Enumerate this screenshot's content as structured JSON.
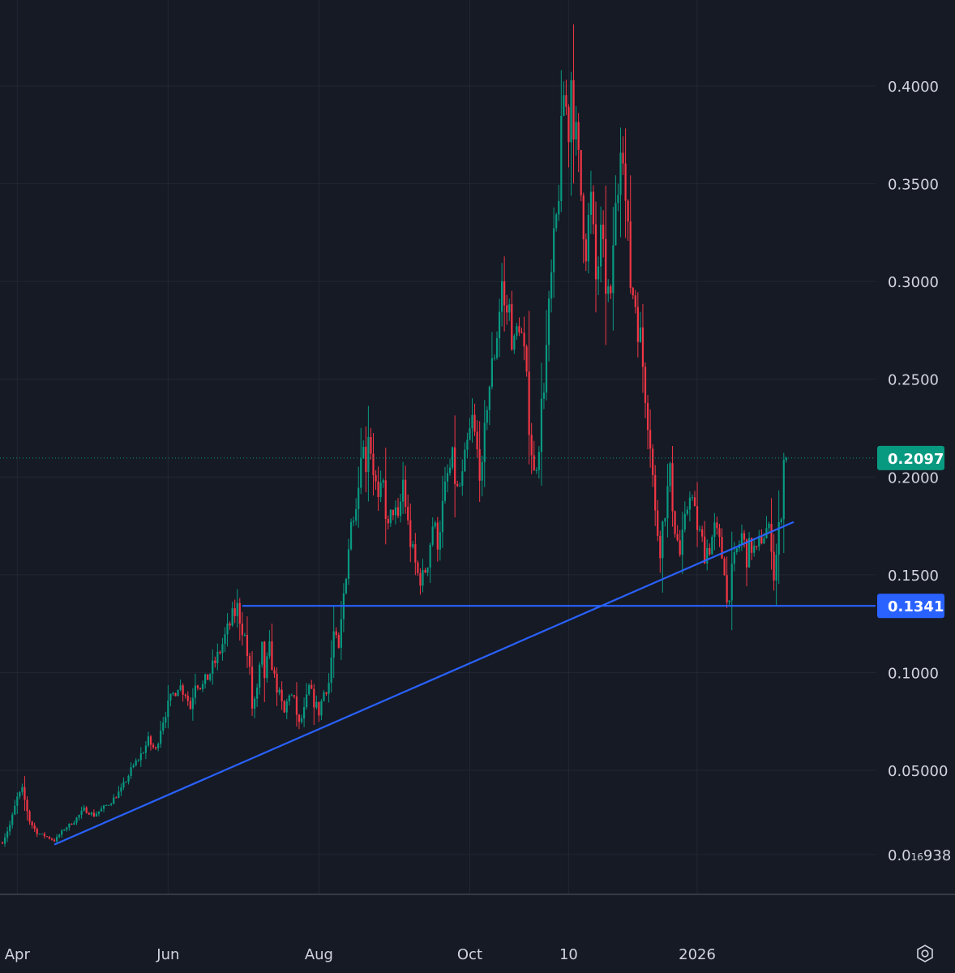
{
  "chart_data": {
    "type": "candlestick",
    "title": "",
    "xlabel": "",
    "ylabel": "",
    "ylim": [
      0.006938,
      0.43
    ],
    "grid": true,
    "x_ticks": [
      {
        "label": "Apr",
        "day": 6
      },
      {
        "label": "Jun",
        "day": 67
      },
      {
        "label": "Aug",
        "day": 128
      },
      {
        "label": "Oct",
        "day": 189
      },
      {
        "label": "10",
        "day": 229
      },
      {
        "label": "2026",
        "day": 281
      }
    ],
    "y_ticks": [
      {
        "label": "0.4000",
        "value": 0.4
      },
      {
        "label": "0.3500",
        "value": 0.35
      },
      {
        "label": "0.3000",
        "value": 0.3
      },
      {
        "label": "0.2500",
        "value": 0.25
      },
      {
        "label": "0.2000",
        "value": 0.2
      },
      {
        "label": "0.1500",
        "value": 0.15
      },
      {
        "label": "0.1000",
        "value": 0.1
      },
      {
        "label": "0.05000",
        "value": 0.05
      }
    ],
    "low_tick": {
      "prefix": "0.0",
      "sub": "16",
      "suffix": "938",
      "value": 0.006938
    },
    "current_price": {
      "label": "0.2097",
      "value": 0.2097,
      "color": "#089981"
    },
    "level_price": {
      "label": "0.1341",
      "value": 0.1341,
      "color": "#2962ff"
    },
    "horizontal_line": {
      "from_day": 97,
      "to_day": 320,
      "value": 0.1341,
      "color": "#2962ff"
    },
    "trend_line": {
      "from": [
        21,
        0.012
      ],
      "to": [
        320,
        0.177
      ],
      "color": "#2962ff"
    },
    "colors": {
      "up": "#089981",
      "down": "#f23645",
      "background": "#161a25",
      "grid": "#232733",
      "text": "#d1d4dc"
    },
    "close_anchors": [
      [
        0,
        0.013
      ],
      [
        3,
        0.022
      ],
      [
        6,
        0.036
      ],
      [
        8,
        0.04
      ],
      [
        11,
        0.024
      ],
      [
        14,
        0.018
      ],
      [
        18,
        0.016
      ],
      [
        21,
        0.014
      ],
      [
        25,
        0.02
      ],
      [
        29,
        0.024
      ],
      [
        33,
        0.03
      ],
      [
        37,
        0.027
      ],
      [
        40,
        0.03
      ],
      [
        44,
        0.034
      ],
      [
        48,
        0.04
      ],
      [
        52,
        0.05
      ],
      [
        56,
        0.058
      ],
      [
        59,
        0.065
      ],
      [
        62,
        0.06
      ],
      [
        64,
        0.072
      ],
      [
        66,
        0.08
      ],
      [
        68,
        0.086
      ],
      [
        71,
        0.094
      ],
      [
        74,
        0.09
      ],
      [
        76,
        0.082
      ],
      [
        78,
        0.096
      ],
      [
        81,
        0.093
      ],
      [
        84,
        0.1
      ],
      [
        87,
        0.108
      ],
      [
        90,
        0.118
      ],
      [
        93,
        0.128
      ],
      [
        95,
        0.133
      ],
      [
        96,
        0.128
      ],
      [
        98,
        0.118
      ],
      [
        100,
        0.1
      ],
      [
        101,
        0.082
      ],
      [
        103,
        0.09
      ],
      [
        105,
        0.112
      ],
      [
        106,
        0.098
      ],
      [
        108,
        0.112
      ],
      [
        110,
        0.097
      ],
      [
        112,
        0.088
      ],
      [
        114,
        0.079
      ],
      [
        116,
        0.09
      ],
      [
        118,
        0.085
      ],
      [
        120,
        0.073
      ],
      [
        122,
        0.08
      ],
      [
        124,
        0.092
      ],
      [
        126,
        0.085
      ],
      [
        128,
        0.08
      ],
      [
        130,
        0.09
      ],
      [
        132,
        0.095
      ],
      [
        134,
        0.12
      ],
      [
        136,
        0.11
      ],
      [
        138,
        0.14
      ],
      [
        140,
        0.165
      ],
      [
        142,
        0.185
      ],
      [
        144,
        0.196
      ],
      [
        145,
        0.218
      ],
      [
        147,
        0.208
      ],
      [
        148,
        0.225
      ],
      [
        150,
        0.205
      ],
      [
        152,
        0.185
      ],
      [
        154,
        0.195
      ],
      [
        156,
        0.172
      ],
      [
        158,
        0.185
      ],
      [
        160,
        0.175
      ],
      [
        162,
        0.198
      ],
      [
        164,
        0.175
      ],
      [
        166,
        0.16
      ],
      [
        168,
        0.15
      ],
      [
        170,
        0.148
      ],
      [
        172,
        0.158
      ],
      [
        174,
        0.176
      ],
      [
        176,
        0.168
      ],
      [
        178,
        0.184
      ],
      [
        180,
        0.2
      ],
      [
        182,
        0.207
      ],
      [
        184,
        0.192
      ],
      [
        186,
        0.198
      ],
      [
        188,
        0.215
      ],
      [
        190,
        0.228
      ],
      [
        192,
        0.212
      ],
      [
        194,
        0.2
      ],
      [
        196,
        0.24
      ],
      [
        198,
        0.255
      ],
      [
        200,
        0.275
      ],
      [
        202,
        0.3
      ],
      [
        203,
        0.285
      ],
      [
        205,
        0.285
      ],
      [
        207,
        0.265
      ],
      [
        209,
        0.282
      ],
      [
        211,
        0.26
      ],
      [
        213,
        0.23
      ],
      [
        215,
        0.2
      ],
      [
        217,
        0.22
      ],
      [
        219,
        0.25
      ],
      [
        220,
        0.265
      ],
      [
        222,
        0.3
      ],
      [
        224,
        0.33
      ],
      [
        226,
        0.37
      ],
      [
        227,
        0.396
      ],
      [
        229,
        0.38
      ],
      [
        230,
        0.405
      ],
      [
        232,
        0.37
      ],
      [
        234,
        0.345
      ],
      [
        236,
        0.32
      ],
      [
        238,
        0.34
      ],
      [
        240,
        0.3
      ],
      [
        242,
        0.32
      ],
      [
        244,
        0.3
      ],
      [
        246,
        0.285
      ],
      [
        247,
        0.32
      ],
      [
        249,
        0.35
      ],
      [
        250,
        0.38
      ],
      [
        251,
        0.375
      ],
      [
        252,
        0.34
      ],
      [
        254,
        0.3
      ],
      [
        256,
        0.29
      ],
      [
        258,
        0.27
      ],
      [
        260,
        0.245
      ],
      [
        262,
        0.22
      ],
      [
        264,
        0.18
      ],
      [
        266,
        0.165
      ],
      [
        268,
        0.185
      ],
      [
        270,
        0.2
      ],
      [
        272,
        0.175
      ],
      [
        274,
        0.16
      ],
      [
        276,
        0.175
      ],
      [
        278,
        0.195
      ],
      [
        280,
        0.18
      ],
      [
        282,
        0.17
      ],
      [
        284,
        0.162
      ],
      [
        286,
        0.165
      ],
      [
        288,
        0.173
      ],
      [
        290,
        0.165
      ],
      [
        292,
        0.155
      ],
      [
        293,
        0.135
      ],
      [
        295,
        0.15
      ],
      [
        297,
        0.162
      ],
      [
        299,
        0.17
      ],
      [
        301,
        0.16
      ],
      [
        303,
        0.165
      ],
      [
        305,
        0.16
      ],
      [
        307,
        0.17
      ],
      [
        309,
        0.173
      ],
      [
        311,
        0.168
      ],
      [
        312,
        0.15
      ],
      [
        313,
        0.16
      ],
      [
        315,
        0.185
      ],
      [
        316,
        0.208
      ],
      [
        317,
        0.2097
      ]
    ]
  }
}
